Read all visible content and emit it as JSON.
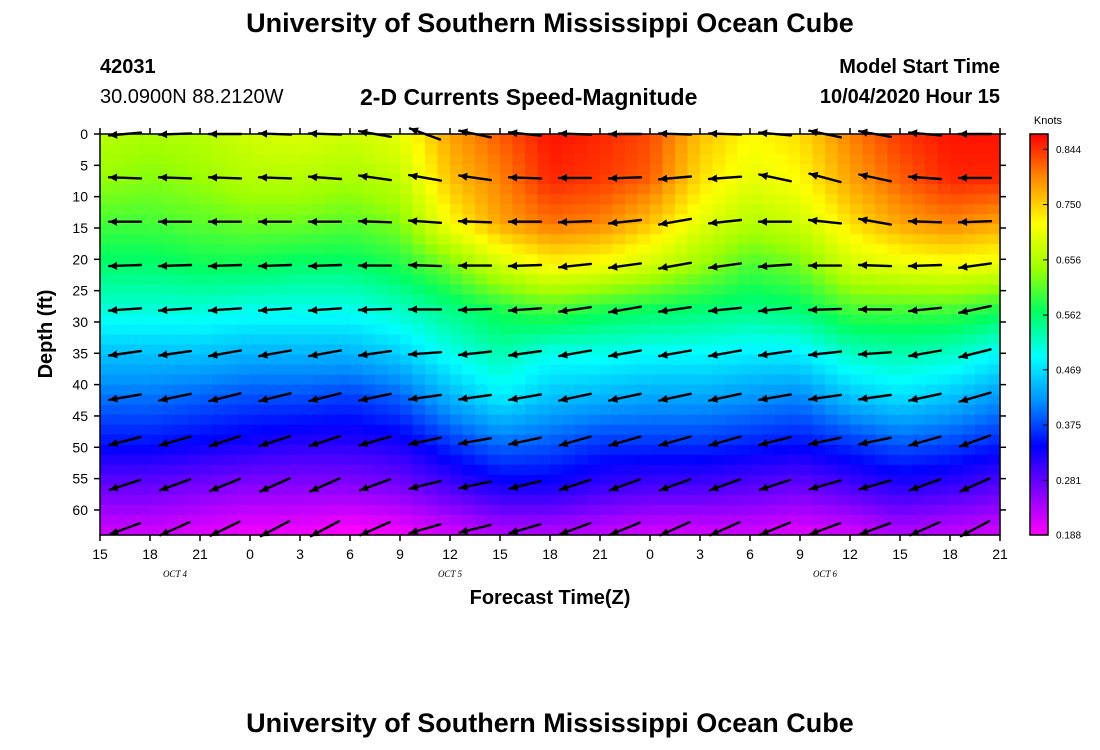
{
  "header": {
    "title": "University of Southern Mississippi Ocean Cube",
    "station_id": "42031",
    "location": "30.0900N 88.2120W",
    "model_start_label": "Model Start Time",
    "model_start_value": "10/04/2020 Hour 15"
  },
  "footer": {
    "title": "University of Southern Mississippi Ocean Cube"
  },
  "colors": {
    "arrow": "#000000",
    "colormap": [
      "#ff00ff",
      "#7f00ff",
      "#0000ff",
      "#0090ff",
      "#00ffff",
      "#00ff60",
      "#a0ff00",
      "#ffff00",
      "#ff8c00",
      "#ff0000"
    ]
  },
  "chart_data": {
    "type": "heatmap",
    "title": "2-D Currents Speed-Magnitude",
    "xlabel": "Forecast Time(Z)",
    "ylabel": "Depth (ft)",
    "x_ticks": [
      "15",
      "18",
      "21",
      "0",
      "3",
      "6",
      "9",
      "12",
      "15",
      "18",
      "21",
      "0",
      "3",
      "6",
      "9",
      "12",
      "15",
      "18",
      "21"
    ],
    "x_range": [
      0,
      54
    ],
    "x_unit": "hours since model start",
    "date_labels": [
      {
        "label": "OCT 4",
        "hour": 4.5
      },
      {
        "label": "OCT 5",
        "hour": 21
      },
      {
        "label": "OCT 6",
        "hour": 43.5
      }
    ],
    "y_ticks": [
      0,
      5,
      10,
      15,
      20,
      25,
      30,
      35,
      40,
      45,
      50,
      55,
      60
    ],
    "y_range": [
      0,
      64
    ],
    "colorbar": {
      "label": "Knots",
      "ticks": [
        0.188,
        0.281,
        0.375,
        0.469,
        0.562,
        0.656,
        0.75,
        0.844
      ],
      "tick_labels": [
        "0.188",
        "0.281",
        "0.375",
        "0.469",
        "0.562",
        "0.656",
        "0.750",
        "0.844"
      ],
      "range": [
        0.188,
        0.87
      ]
    },
    "grid": false,
    "hours": [
      0,
      3,
      6,
      9,
      12,
      15,
      18,
      21,
      24,
      27,
      30,
      33,
      36,
      39,
      42,
      45,
      48,
      51,
      54
    ],
    "depths": [
      0,
      7,
      14,
      21,
      28,
      35,
      42,
      49,
      56,
      63
    ],
    "speed_knots": [
      [
        0.66,
        0.65,
        0.66,
        0.68,
        0.69,
        0.68,
        0.7,
        0.78,
        0.82,
        0.86,
        0.85,
        0.83,
        0.76,
        0.72,
        0.74,
        0.8,
        0.84,
        0.86,
        0.86
      ],
      [
        0.64,
        0.63,
        0.64,
        0.66,
        0.66,
        0.65,
        0.67,
        0.76,
        0.8,
        0.85,
        0.84,
        0.82,
        0.74,
        0.7,
        0.72,
        0.78,
        0.82,
        0.85,
        0.85
      ],
      [
        0.6,
        0.6,
        0.61,
        0.62,
        0.62,
        0.61,
        0.63,
        0.72,
        0.78,
        0.81,
        0.8,
        0.76,
        0.7,
        0.66,
        0.68,
        0.74,
        0.78,
        0.8,
        0.78
      ],
      [
        0.56,
        0.56,
        0.57,
        0.57,
        0.56,
        0.56,
        0.58,
        0.62,
        0.68,
        0.72,
        0.71,
        0.68,
        0.64,
        0.6,
        0.62,
        0.68,
        0.7,
        0.71,
        0.7
      ],
      [
        0.51,
        0.51,
        0.51,
        0.5,
        0.5,
        0.5,
        0.52,
        0.55,
        0.58,
        0.6,
        0.58,
        0.57,
        0.56,
        0.55,
        0.56,
        0.6,
        0.6,
        0.6,
        0.58
      ],
      [
        0.45,
        0.45,
        0.45,
        0.44,
        0.44,
        0.44,
        0.46,
        0.5,
        0.53,
        0.5,
        0.5,
        0.49,
        0.49,
        0.48,
        0.48,
        0.52,
        0.53,
        0.52,
        0.49
      ],
      [
        0.4,
        0.4,
        0.39,
        0.38,
        0.38,
        0.37,
        0.39,
        0.44,
        0.48,
        0.45,
        0.44,
        0.43,
        0.43,
        0.42,
        0.41,
        0.45,
        0.47,
        0.45,
        0.42
      ],
      [
        0.35,
        0.35,
        0.34,
        0.33,
        0.32,
        0.32,
        0.33,
        0.37,
        0.4,
        0.39,
        0.37,
        0.37,
        0.37,
        0.36,
        0.35,
        0.37,
        0.39,
        0.38,
        0.36
      ],
      [
        0.28,
        0.28,
        0.27,
        0.26,
        0.26,
        0.26,
        0.27,
        0.3,
        0.33,
        0.33,
        0.31,
        0.3,
        0.3,
        0.29,
        0.28,
        0.3,
        0.32,
        0.31,
        0.29
      ],
      [
        0.22,
        0.22,
        0.21,
        0.2,
        0.2,
        0.19,
        0.2,
        0.22,
        0.24,
        0.24,
        0.23,
        0.22,
        0.22,
        0.22,
        0.21,
        0.22,
        0.24,
        0.23,
        0.22
      ]
    ],
    "vector_hours": [
      1.5,
      4.5,
      7.5,
      10.5,
      13.5,
      16.5,
      19.5,
      22.5,
      25.5,
      28.5,
      31.5,
      34.5,
      37.5,
      40.5,
      43.5,
      46.5,
      49.5,
      52.5
    ],
    "vector_depths": [
      0,
      7,
      14,
      21,
      28,
      35,
      42,
      49,
      56,
      63
    ],
    "vector_direction_deg": [
      [
        185,
        182,
        180,
        178,
        178,
        170,
        160,
        168,
        174,
        178,
        180,
        178,
        178,
        175,
        168,
        170,
        175,
        180
      ],
      [
        178,
        178,
        178,
        178,
        176,
        172,
        170,
        172,
        178,
        180,
        182,
        185,
        184,
        168,
        165,
        168,
        176,
        180
      ],
      [
        180,
        180,
        180,
        180,
        180,
        178,
        176,
        178,
        180,
        182,
        186,
        190,
        186,
        180,
        174,
        170,
        178,
        182
      ],
      [
        182,
        182,
        182,
        182,
        182,
        180,
        178,
        180,
        182,
        186,
        188,
        190,
        188,
        184,
        180,
        178,
        182,
        188
      ],
      [
        184,
        184,
        184,
        184,
        184,
        182,
        180,
        182,
        184,
        188,
        190,
        188,
        186,
        186,
        182,
        180,
        186,
        192
      ],
      [
        188,
        188,
        190,
        190,
        190,
        188,
        184,
        186,
        188,
        190,
        190,
        190,
        190,
        188,
        186,
        184,
        190,
        194
      ],
      [
        190,
        192,
        194,
        194,
        194,
        192,
        188,
        188,
        190,
        192,
        192,
        192,
        192,
        190,
        188,
        188,
        192,
        196
      ],
      [
        194,
        196,
        198,
        198,
        198,
        196,
        192,
        190,
        192,
        196,
        196,
        196,
        196,
        194,
        192,
        192,
        196,
        200
      ],
      [
        198,
        200,
        202,
        204,
        204,
        200,
        194,
        192,
        194,
        198,
        200,
        200,
        200,
        198,
        196,
        196,
        200,
        204
      ],
      [
        200,
        204,
        206,
        208,
        208,
        204,
        196,
        194,
        196,
        200,
        202,
        204,
        204,
        202,
        200,
        200,
        204,
        208
      ]
    ]
  }
}
